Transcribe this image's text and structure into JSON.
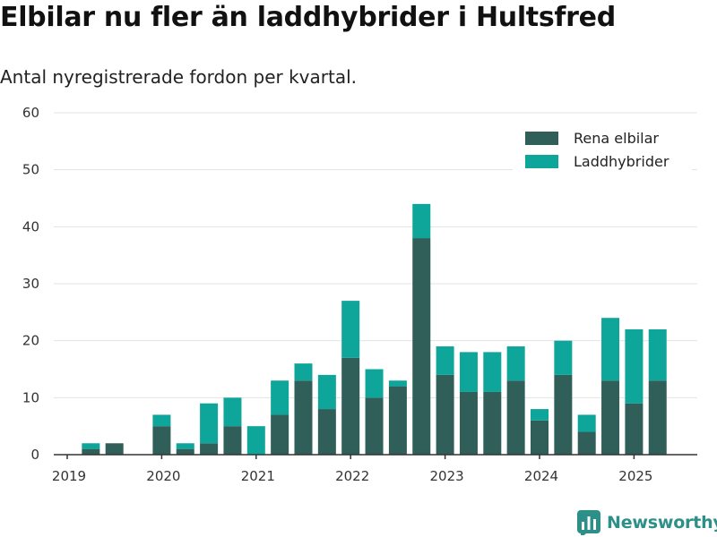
{
  "title": "Elbilar nu fler än laddhybrider i Hultsfred",
  "subtitle": "Antal nyregistrerade fordon per kvartal.",
  "brand": {
    "name": "Newsworthy",
    "icon": "newsworthy-logo-icon"
  },
  "colors": {
    "rena_elbilar": "#2f5f58",
    "laddhybrider": "#0ea59a",
    "grid": "#e3e3e3",
    "axis": "#333333"
  },
  "chart_data": {
    "type": "bar",
    "stacked": true,
    "categories": [
      "2019 Q1",
      "2019 Q2",
      "2019 Q3",
      "2019 Q4",
      "2020 Q1",
      "2020 Q2",
      "2020 Q3",
      "2020 Q4",
      "2021 Q1",
      "2021 Q2",
      "2021 Q3",
      "2021 Q4",
      "2022 Q1",
      "2022 Q2",
      "2022 Q3",
      "2022 Q4",
      "2023 Q1",
      "2023 Q2",
      "2023 Q3",
      "2023 Q4",
      "2024 Q1",
      "2024 Q2",
      "2024 Q3",
      "2024 Q4",
      "2025 Q1",
      "2025 Q2"
    ],
    "x_tick_labels": [
      "2019",
      "2020",
      "2021",
      "2022",
      "2023",
      "2024",
      "2025"
    ],
    "series": [
      {
        "name": "Rena elbilar",
        "color": "#2f5f58",
        "values": [
          0,
          1,
          2,
          0,
          5,
          1,
          2,
          5,
          0,
          7,
          13,
          8,
          17,
          10,
          12,
          38,
          14,
          11,
          11,
          13,
          6,
          14,
          4,
          13,
          9,
          13
        ]
      },
      {
        "name": "Laddhybrider",
        "color": "#0ea59a",
        "values": [
          0,
          1,
          0,
          0,
          2,
          1,
          7,
          5,
          5,
          6,
          3,
          6,
          10,
          5,
          1,
          6,
          5,
          7,
          7,
          6,
          2,
          6,
          3,
          11,
          13,
          9
        ]
      }
    ],
    "ylim": [
      0,
      60
    ],
    "yticks": [
      0,
      10,
      20,
      30,
      40,
      50,
      60
    ],
    "grid": true,
    "legend": "top-right",
    "xlabel": "",
    "ylabel": ""
  }
}
